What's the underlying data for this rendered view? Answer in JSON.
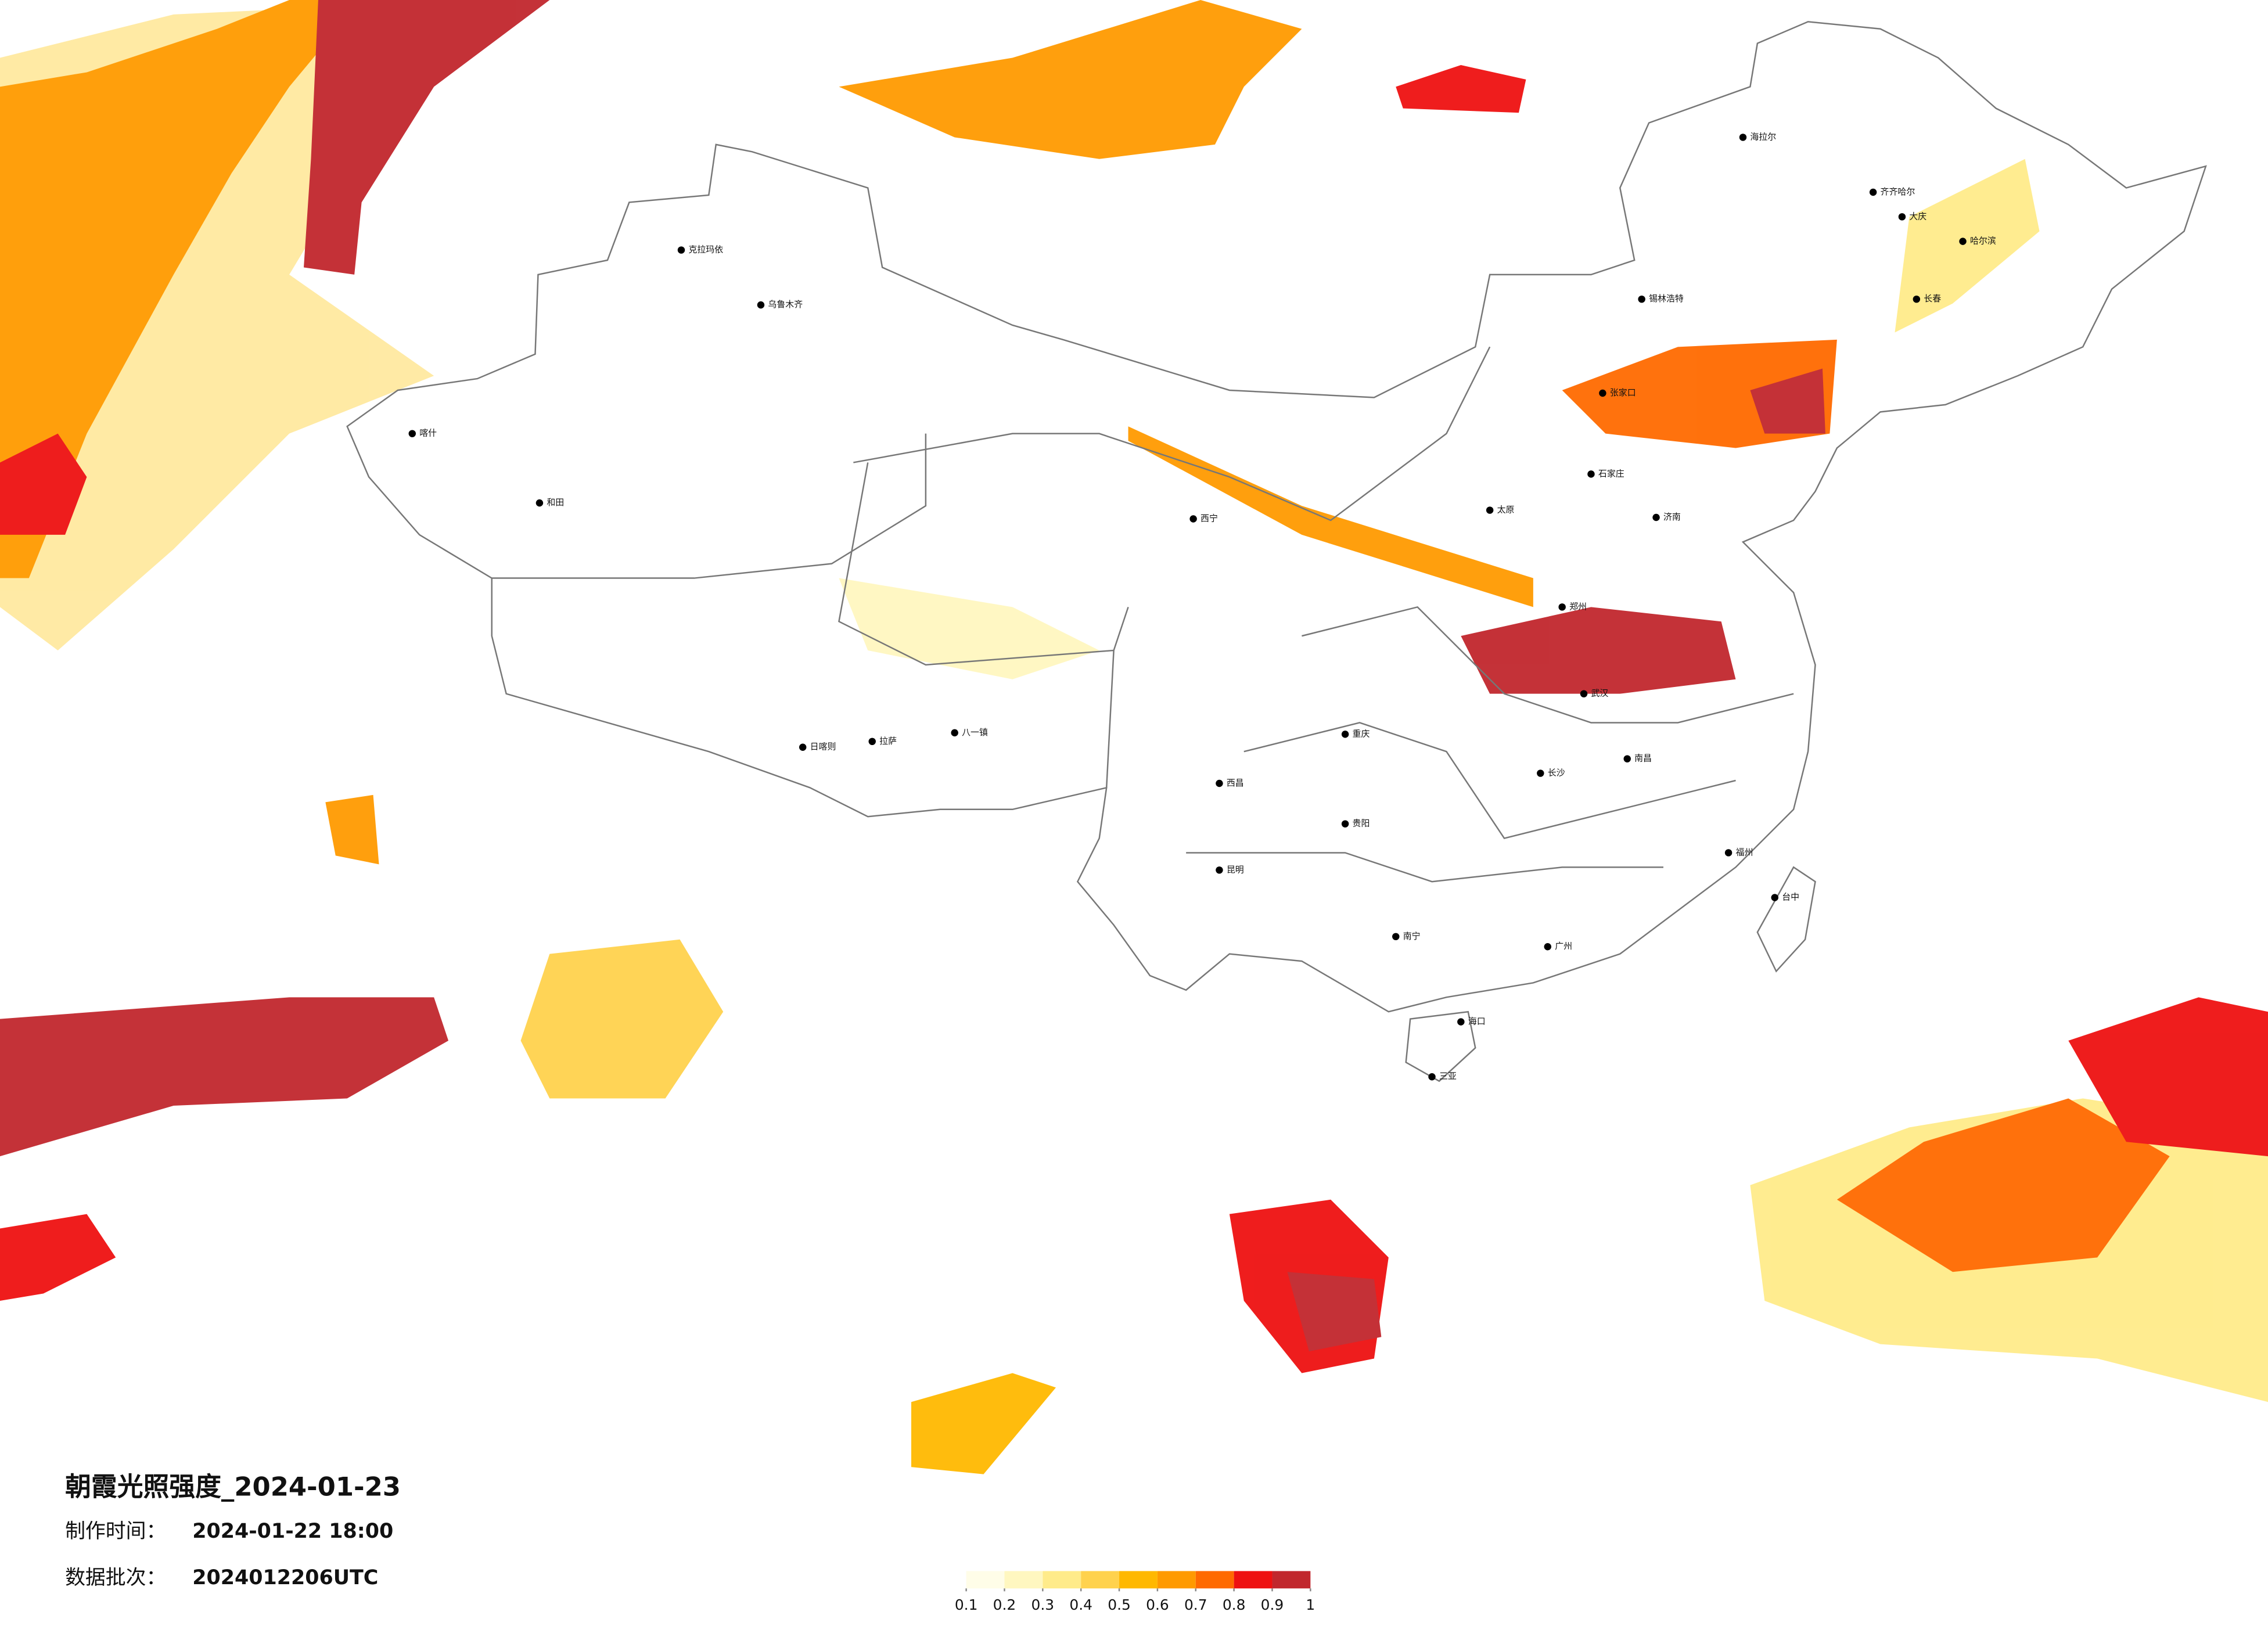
{
  "header": {
    "title": "朝霞光照强度_2024-01-23",
    "production_time_label": "制作时间：",
    "production_time": "2024-01-22 18:00",
    "batch_label": "数据批次：",
    "batch": "2024012206UTC"
  },
  "legend": {
    "ticks": [
      0.1,
      0.2,
      0.3,
      0.4,
      0.5,
      0.6,
      0.7,
      0.8,
      0.9,
      1
    ],
    "colors": [
      "#fffde8",
      "#fff7c0",
      "#ffeb8a",
      "#ffd24d",
      "#ffb800",
      "#ff9a00",
      "#ff6a00",
      "#ee1111",
      "#c1272d"
    ]
  },
  "cities": [
    "克拉玛依",
    "乌鲁木齐",
    "喀什",
    "和田",
    "日喀则",
    "拉萨",
    "西宁",
    "海拉尔",
    "齐齐哈尔",
    "大庆",
    "哈尔滨",
    "长春",
    "锡林浩特",
    "张家口",
    "石家庄",
    "太原",
    "济南",
    "郑州",
    "武汉",
    "重庆",
    "贵阳",
    "昆明",
    "长沙",
    "南昌",
    "福州",
    "南宁",
    "广州",
    "海口",
    "三亚",
    "台中",
    "西昌",
    "八一镇"
  ]
}
